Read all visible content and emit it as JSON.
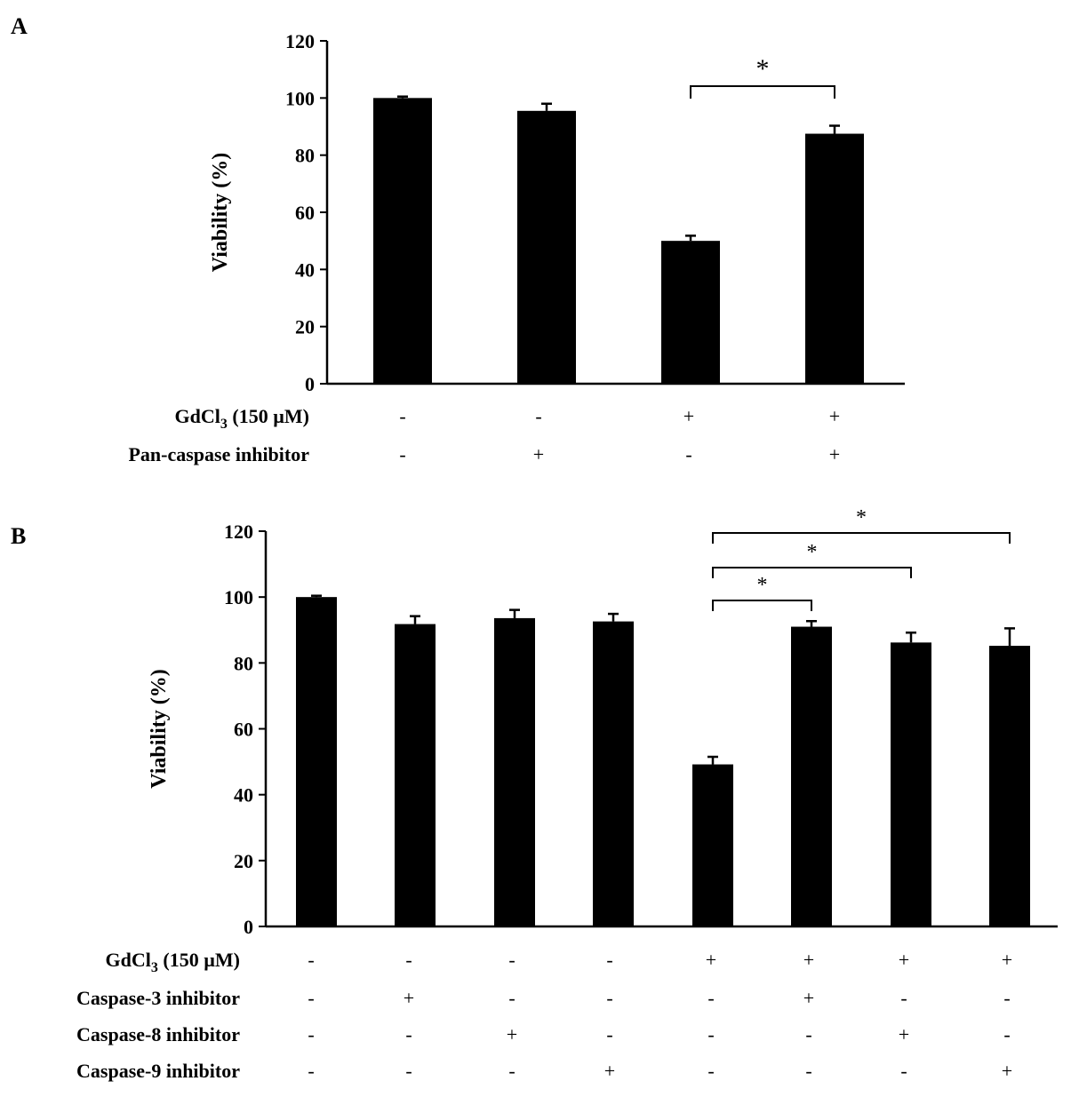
{
  "chart_data": [
    {
      "panel": "A",
      "type": "bar",
      "ylabel": "Viability (%)",
      "ylim": [
        0,
        120
      ],
      "yticks": [
        0,
        20,
        40,
        60,
        80,
        100,
        120
      ],
      "values": [
        100,
        95.5,
        50,
        87.5
      ],
      "errors": [
        0.5,
        2.5,
        1.8,
        2.8
      ],
      "treatment_rows": [
        {
          "label_main": "GdCl",
          "label_sub": "3",
          "label_tail": " (150 µM)",
          "symbols": [
            "-",
            "-",
            "+",
            "+"
          ]
        },
        {
          "label_main": "Pan-caspase inhibitor",
          "label_sub": "",
          "label_tail": "",
          "symbols": [
            "-",
            "+",
            "-",
            "+"
          ]
        }
      ],
      "significance": [
        {
          "from": 2,
          "to": 3,
          "label": "*"
        }
      ]
    },
    {
      "panel": "B",
      "type": "bar",
      "ylabel": "Viability (%)",
      "ylim": [
        0,
        120
      ],
      "yticks": [
        0,
        20,
        40,
        60,
        80,
        100,
        120
      ],
      "values": [
        100,
        91.8,
        93.6,
        92.6,
        49.2,
        91,
        86.2,
        85.2
      ],
      "errors": [
        0.4,
        2.4,
        2.5,
        2.3,
        2.3,
        1.7,
        3.0,
        5.3
      ],
      "treatment_rows": [
        {
          "label_main": "GdCl",
          "label_sub": "3",
          "label_tail": " (150 µM)",
          "symbols": [
            "-",
            "-",
            "-",
            "-",
            "+",
            "+",
            "+",
            "+"
          ]
        },
        {
          "label_main": "Caspase-3 inhibitor",
          "label_sub": "",
          "label_tail": "",
          "symbols": [
            "-",
            "+",
            "-",
            "-",
            "-",
            "+",
            "-",
            "-"
          ]
        },
        {
          "label_main": "Caspase-8 inhibitor",
          "label_sub": "",
          "label_tail": "",
          "symbols": [
            "-",
            "-",
            "+",
            "-",
            "-",
            "-",
            "+",
            "-"
          ]
        },
        {
          "label_main": "Caspase-9 inhibitor",
          "label_sub": "",
          "label_tail": "",
          "symbols": [
            "-",
            "-",
            "-",
            "+",
            "-",
            "-",
            "-",
            "+"
          ]
        }
      ],
      "significance": [
        {
          "from": 4,
          "to": 5,
          "label": "*"
        },
        {
          "from": 4,
          "to": 6,
          "label": "*"
        },
        {
          "from": 4,
          "to": 7,
          "label": "*"
        }
      ]
    }
  ]
}
